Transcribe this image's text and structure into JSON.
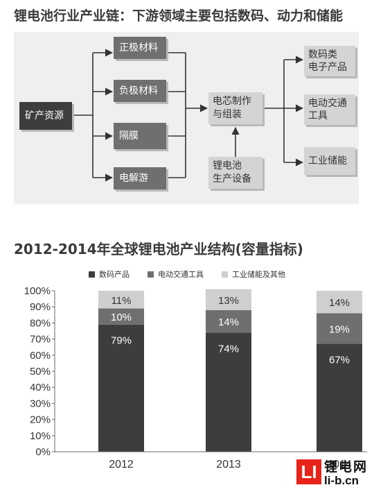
{
  "diagram": {
    "title": "锂电池行业产业链：下游领域主要包括数码、动力和储能",
    "source": "矿产资源",
    "materials": [
      "正极材料",
      "负极材料",
      "隔膜",
      "电解游"
    ],
    "assembly": [
      "电芯制作",
      "与组装"
    ],
    "equipment": [
      "锂电池",
      "生产设备"
    ],
    "applications": [
      [
        "数码类",
        "电子产品"
      ],
      [
        "电动交通",
        "工具"
      ],
      [
        "工业储能"
      ]
    ]
  },
  "colors": {
    "dark": "#3d3d3d",
    "mid": "#6f6f6f",
    "light": "#d4d4d4",
    "logo_red": "#e8241a"
  },
  "chart_data": {
    "type": "bar",
    "stacked": true,
    "title": "2012-2014年全球锂电池产业结构(容量指标)",
    "categories": [
      "2012",
      "2013",
      "2014"
    ],
    "series": [
      {
        "name": "数码产品",
        "values": [
          79,
          74,
          67
        ],
        "labels": [
          "79%",
          "74%",
          "67%"
        ],
        "color": "#3d3d3d"
      },
      {
        "name": "电动交通工具",
        "values": [
          10,
          14,
          19
        ],
        "labels": [
          "10%",
          "14%",
          "19%"
        ],
        "color": "#6f6f6f"
      },
      {
        "name": "工业储能及其他",
        "values": [
          11,
          13,
          14
        ],
        "labels": [
          "11%",
          "13%",
          "14%"
        ],
        "color": "#cfcfcf"
      }
    ],
    "yticks": [
      "0%",
      "10%",
      "20%",
      "30%",
      "40%",
      "50%",
      "60%",
      "70%",
      "80%",
      "90%",
      "100%"
    ],
    "ylim": [
      0,
      100
    ],
    "legend_position": "top",
    "grid": false
  },
  "logo": {
    "mark": "LI",
    "name": "锂电网",
    "url": "li-b.cn"
  }
}
